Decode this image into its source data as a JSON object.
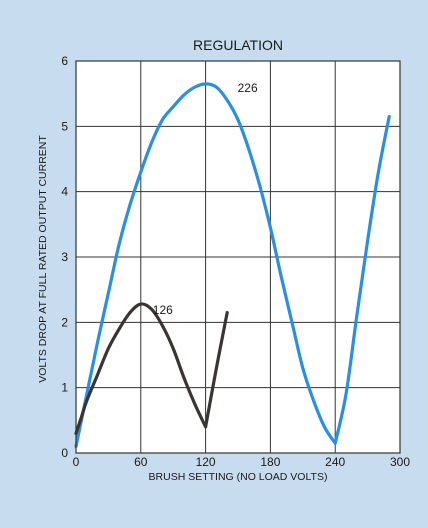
{
  "chart_data": {
    "type": "line",
    "title": "REGULATION",
    "xlabel": "BRUSH SETTING (NO LOAD VOLTS)",
    "ylabel": "VOLTS DROP AT FULL RATED OUTPUT CURRENT",
    "xlim": [
      0,
      300
    ],
    "ylim": [
      0,
      6
    ],
    "x_ticks": [
      "0",
      "60",
      "120",
      "180",
      "240",
      "300"
    ],
    "y_ticks": [
      "0",
      "1",
      "2",
      "3",
      "4",
      "5",
      "6"
    ],
    "grid": true,
    "series": [
      {
        "name": "226",
        "color": "#2a8fe0",
        "x": [
          0,
          10,
          20,
          30,
          40,
          50,
          60,
          70,
          80,
          90,
          100,
          110,
          120,
          130,
          140,
          150,
          160,
          170,
          180,
          190,
          200,
          210,
          220,
          230,
          240,
          250,
          260,
          270,
          280,
          290
        ],
        "y": [
          0.1,
          0.9,
          1.7,
          2.45,
          3.2,
          3.8,
          4.3,
          4.75,
          5.1,
          5.3,
          5.48,
          5.6,
          5.65,
          5.6,
          5.4,
          5.1,
          4.65,
          4.1,
          3.45,
          2.7,
          2.0,
          1.3,
          0.8,
          0.4,
          0.15,
          0.9,
          2.1,
          3.25,
          4.3,
          5.15
        ]
      },
      {
        "name": "126",
        "color": "#3a3433",
        "x": [
          0,
          5,
          10,
          20,
          30,
          40,
          50,
          60,
          70,
          80,
          90,
          100,
          110,
          120,
          130,
          140
        ],
        "y": [
          0.3,
          0.55,
          0.8,
          1.2,
          1.6,
          1.9,
          2.15,
          2.28,
          2.2,
          1.95,
          1.6,
          1.15,
          0.75,
          0.4,
          1.3,
          2.15
        ]
      }
    ]
  }
}
